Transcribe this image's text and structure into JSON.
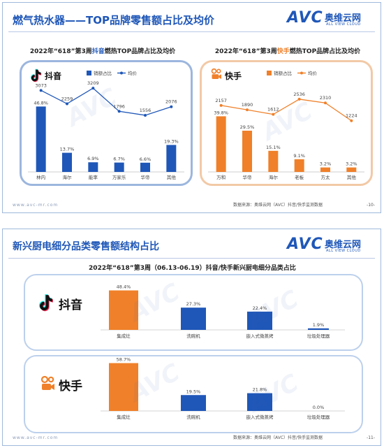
{
  "slide1": {
    "title": "燃气热水器——TOP品牌零售额占比及均价",
    "logo": {
      "main": "AVC",
      "cn": "奥维云网",
      "sub": "ALL VIEW CLOUD"
    },
    "footer_left": "www.avc-mr.com",
    "footer_source": "数据来源：奥维云网（AVC）抖音/快手监测数据",
    "page": "-10-"
  },
  "slide2": {
    "title": "新兴厨电细分品类零售额结构占比",
    "logo": {
      "main": "AVC",
      "cn": "奥维云网",
      "sub": "ALL VIEW CLOUD"
    },
    "footer_left": "www.avc-mr.com",
    "footer_source": "数据来源：奥维云网（AVC）抖音/快手监测数据",
    "page": "-11-"
  },
  "colors": {
    "blue": "#1f57b8",
    "orange": "#f08029",
    "gray": "#666666"
  },
  "chart_data": [
    {
      "id": "douyin_water_heater",
      "type": "bar",
      "title_pre": "2022年“618”第3周",
      "title_platform": "抖音",
      "title_post": "燃热TOP品牌占比及均价",
      "platform_logo_text": "抖音",
      "platform_icon": "douyin-icon",
      "legend": [
        "销额占比",
        "均价"
      ],
      "categories": [
        "林内",
        "海尔",
        "能率",
        "万家乐",
        "华帝",
        "其他"
      ],
      "series": [
        {
          "name": "销额占比",
          "kind": "bar",
          "values": [
            46.8,
            13.7,
            6.9,
            6.7,
            6.6,
            19.3
          ],
          "labels": [
            "46.8%",
            "13.7%",
            "6.9%",
            "6.7%",
            "6.6%",
            "19.3%"
          ]
        },
        {
          "name": "均价",
          "kind": "line",
          "values": [
            3073,
            2259,
            3209,
            1796,
            1556,
            2076
          ],
          "labels": [
            "3073",
            "2259",
            "3209",
            "1796",
            "1556",
            "2076"
          ]
        }
      ],
      "color": "#1f57b8"
    },
    {
      "id": "kuaishou_water_heater",
      "type": "bar",
      "title_pre": "2022年“618”第3周",
      "title_platform": "快手",
      "title_post": "燃热TOP品牌占比及均价",
      "platform_logo_text": "快手",
      "platform_icon": "kuaishou-icon",
      "legend": [
        "销额占比",
        "均价"
      ],
      "categories": [
        "万和",
        "华帝",
        "海尔",
        "老板",
        "方太",
        "其他"
      ],
      "series": [
        {
          "name": "销额占比",
          "kind": "bar",
          "values": [
            39.8,
            29.5,
            15.1,
            9.1,
            3.2,
            3.2
          ],
          "labels": [
            "39.8%",
            "29.5%",
            "15.1%",
            "9.1%",
            "3.2%",
            "3.2%"
          ]
        },
        {
          "name": "均价",
          "kind": "line",
          "values": [
            2157,
            1890,
            1612,
            2536,
            2310,
            1224
          ],
          "labels": [
            "2157",
            "1890",
            "1612",
            "2536",
            "2310",
            "1224"
          ]
        }
      ],
      "color": "#f08029"
    },
    {
      "id": "kitchen_structure",
      "type": "bar",
      "title": "2022年“618”第3周（06.13-06.19）抖音/快手新兴厨电细分品类占比",
      "categories": [
        "集成灶",
        "洗碗机",
        "嵌入式微蒸烤",
        "垃圾处理器"
      ],
      "series": [
        {
          "name": "抖音",
          "values": [
            48.4,
            27.3,
            22.4,
            1.9
          ],
          "labels": [
            "48.4%",
            "27.3%",
            "22.4%",
            "1.9%"
          ]
        },
        {
          "name": "快手",
          "values": [
            58.7,
            19.5,
            21.8,
            0.0
          ],
          "labels": [
            "58.7%",
            "19.5%",
            "21.8%",
            "0.0%"
          ]
        }
      ]
    }
  ]
}
